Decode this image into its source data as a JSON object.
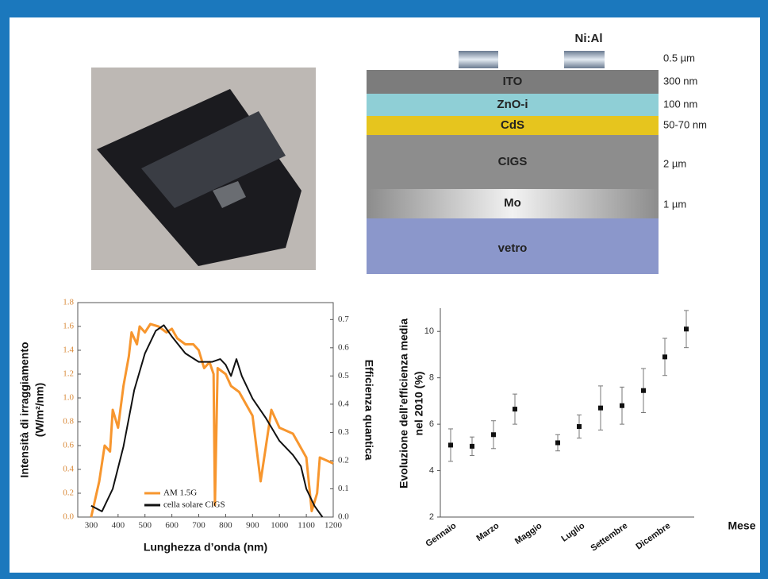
{
  "diagram": {
    "contact_label": "Ni:Al",
    "contact_thickness": "0.5 µm",
    "layers": [
      {
        "name": "ITO",
        "thickness": "300 nm"
      },
      {
        "name": "ZnO-i",
        "thickness": "100 nm"
      },
      {
        "name": "CdS",
        "thickness": "50-70 nm"
      },
      {
        "name": "CIGS",
        "thickness": "2 µm"
      },
      {
        "name": "Mo",
        "thickness": "1 µm"
      },
      {
        "name": "vetro"
      }
    ]
  },
  "chart_data": [
    {
      "type": "line",
      "xlabel": "Lunghezza d’onda (nm)",
      "ylabel": [
        "Intensità di irraggiamento",
        "(W/m²/nm)"
      ],
      "y2label": "Efficienza quantica",
      "xlim": [
        250,
        1200
      ],
      "xticks": [
        300,
        400,
        500,
        600,
        700,
        800,
        900,
        1000,
        1100,
        1200
      ],
      "ylim": [
        0,
        1.8
      ],
      "yticks": [
        {
          "value": 0,
          "label": "0.0"
        },
        0.2,
        0.4,
        0.6,
        0.8,
        {
          "value": 1,
          "label": "1.0"
        },
        1.2,
        1.4,
        1.6,
        1.8
      ],
      "y2lim": [
        0,
        0.76
      ],
      "y2ticks": [
        {
          "value": 0,
          "label": "0.0"
        },
        0.1,
        0.2,
        0.3,
        0.4,
        0.5,
        0.6,
        0.7
      ],
      "legend": "lower left",
      "series": [
        {
          "name": "AM 1.5G",
          "color": "#f7962e",
          "x": [
            300,
            330,
            350,
            370,
            380,
            400,
            420,
            440,
            450,
            470,
            480,
            500,
            520,
            550,
            580,
            600,
            620,
            650,
            680,
            700,
            720,
            740,
            755,
            760,
            770,
            800,
            820,
            850,
            900,
            930,
            950,
            970,
            1000,
            1050,
            1100,
            1120,
            1140,
            1150,
            1200
          ],
          "values": [
            0,
            0.3,
            0.6,
            0.55,
            0.9,
            0.75,
            1.1,
            1.35,
            1.55,
            1.45,
            1.6,
            1.55,
            1.62,
            1.6,
            1.55,
            1.58,
            1.5,
            1.45,
            1.45,
            1.4,
            1.25,
            1.3,
            1.2,
            0.1,
            1.25,
            1.2,
            1.1,
            1.05,
            0.85,
            0.3,
            0.6,
            0.9,
            0.75,
            0.7,
            0.5,
            0.05,
            0.2,
            0.5,
            0.45
          ]
        },
        {
          "name": "cella solare CIGS",
          "color": "#111111",
          "axis": "y2",
          "x": [
            300,
            340,
            380,
            420,
            460,
            500,
            540,
            570,
            600,
            650,
            700,
            750,
            780,
            800,
            820,
            840,
            860,
            900,
            950,
            1000,
            1050,
            1080,
            1100,
            1130,
            1160
          ],
          "values": [
            0.04,
            0.02,
            0.1,
            0.25,
            0.45,
            0.58,
            0.66,
            0.68,
            0.64,
            0.58,
            0.55,
            0.55,
            0.56,
            0.54,
            0.5,
            0.56,
            0.5,
            0.42,
            0.35,
            0.27,
            0.22,
            0.18,
            0.1,
            0.04,
            0
          ]
        }
      ]
    },
    {
      "type": "scatter",
      "ylabel": [
        "Evoluzione dell’efficienza media",
        "nel 2010 (%)"
      ],
      "xlabel": "Mese",
      "categories": [
        "Gennaio",
        null,
        "Marzo",
        null,
        "Maggio",
        null,
        "Luglio",
        null,
        "Settembre",
        null,
        "Dicembre",
        null
      ],
      "values": [
        5.1,
        5.05,
        5.55,
        6.65,
        null,
        5.2,
        5.9,
        6.7,
        6.8,
        7.45,
        8.9,
        10.1
      ],
      "errors": [
        0.7,
        0.4,
        0.6,
        0.65,
        null,
        0.35,
        0.5,
        0.95,
        0.8,
        0.95,
        0.8,
        0.8
      ],
      "ylim": [
        2,
        11
      ],
      "yticks": [
        2,
        4,
        6,
        8,
        10
      ],
      "color": "#111111"
    }
  ]
}
